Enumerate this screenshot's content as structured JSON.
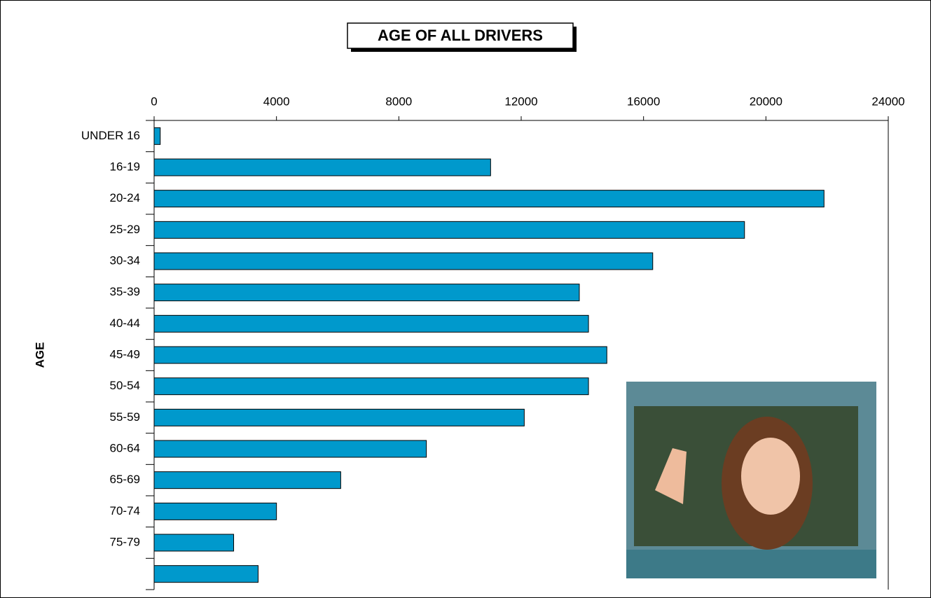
{
  "chart_data": {
    "type": "bar",
    "orientation": "horizontal",
    "title": "AGE OF ALL DRIVERS",
    "y_label": "AGE",
    "categories": [
      "UNDER 16",
      "16-19",
      "20-24",
      "25-29",
      "30-34",
      "35-39",
      "40-44",
      "45-49",
      "50-54",
      "55-59",
      "60-64",
      "65-69",
      "70-74",
      "75-79",
      null
    ],
    "values": [
      200,
      11000,
      21900,
      19300,
      16300,
      13900,
      14200,
      14800,
      14200,
      12100,
      8900,
      6100,
      4000,
      2600,
      3400
    ],
    "color": "#0099cc",
    "xlim": [
      0,
      24000
    ],
    "xticks": [
      0,
      4000,
      8000,
      12000,
      16000,
      20000,
      24000
    ],
    "grid": false
  }
}
